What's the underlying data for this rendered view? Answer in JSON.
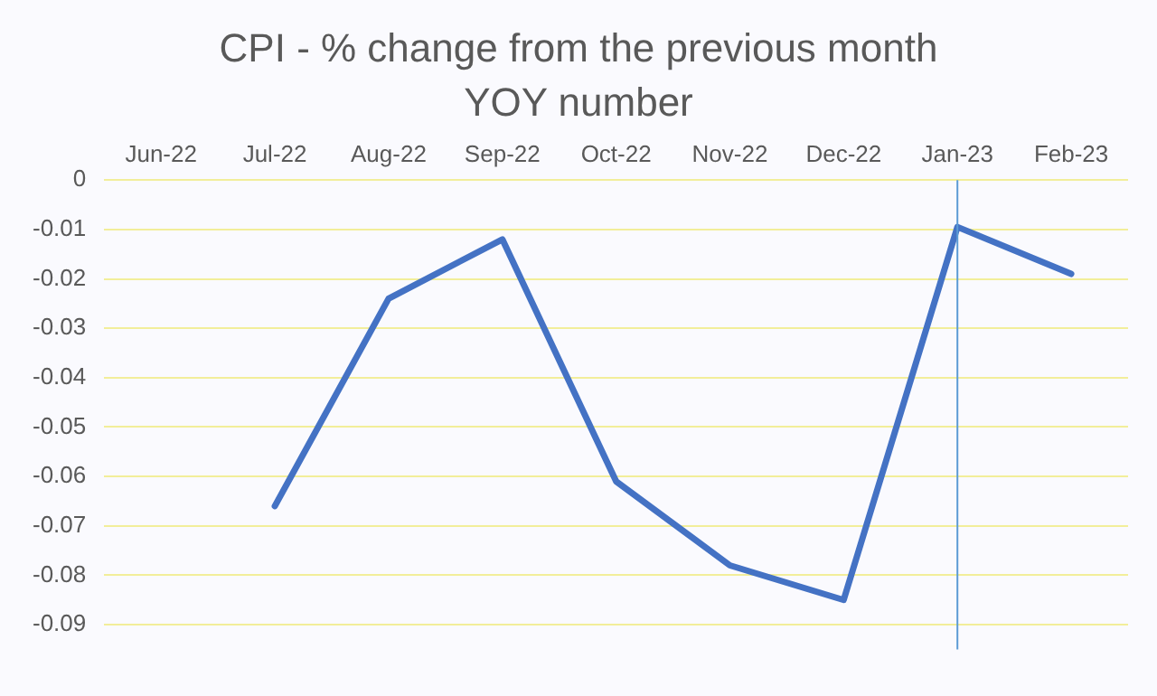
{
  "chart_data": {
    "type": "line",
    "title": "CPI - % change from the previous month YOY number",
    "categories": [
      "Jun-22",
      "Jul-22",
      "Aug-22",
      "Sep-22",
      "Oct-22",
      "Nov-22",
      "Dec-22",
      "Jan-23",
      "Feb-23"
    ],
    "series": [
      {
        "color": "#4472c4",
        "values": [
          null,
          -0.066,
          -0.024,
          -0.012,
          -0.061,
          -0.078,
          -0.085,
          -0.0095,
          -0.019
        ]
      }
    ],
    "ylim": [
      -0.095,
      0
    ],
    "yticks": [
      0,
      -0.01,
      -0.02,
      -0.03,
      -0.04,
      -0.05,
      -0.06,
      -0.07,
      -0.08,
      -0.09
    ],
    "grid": "y",
    "legend": false,
    "marker": "none",
    "line_style": "solid",
    "ref_lines": [
      {
        "axis": "x",
        "value": "Jan-23",
        "color": "#5b9bd5"
      }
    ]
  }
}
